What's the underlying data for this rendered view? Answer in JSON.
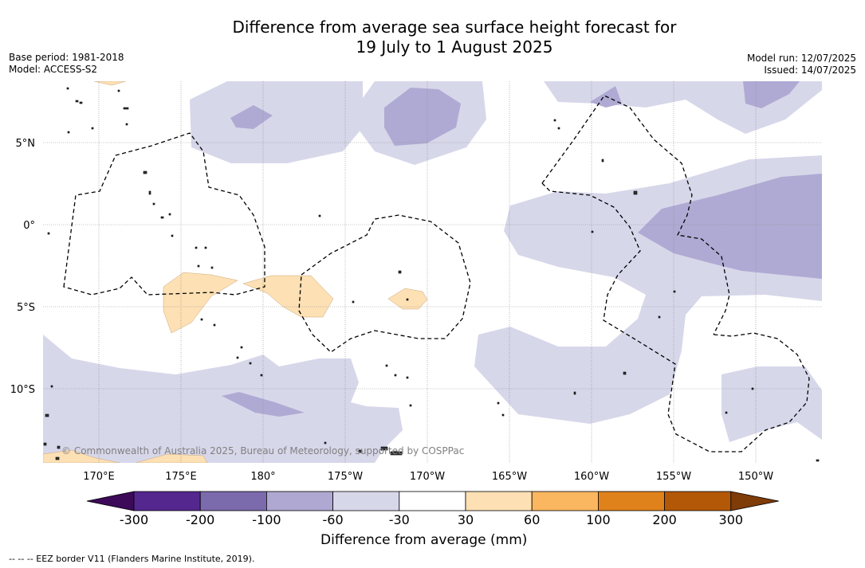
{
  "title_line1": "Difference from average sea surface height forecast for",
  "title_line2": "19 July to 1 August 2025",
  "base_period": "Base period: 1981-2018",
  "model": "Model: ACCESS-S2",
  "model_run": "Model run: 12/07/2025",
  "issued": "Issued: 14/07/2025",
  "attribution": "© Commonwealth of Australia 2025, Bureau of Meteorology, supported by COSPPac",
  "lon_labels": [
    "170°E",
    "175°E",
    "180°",
    "175°W",
    "170°W",
    "165°W",
    "160°W",
    "155°W",
    "150°W"
  ],
  "lat_labels": [
    "5°N",
    "0°",
    "5°S",
    "10°S"
  ],
  "colorbar": {
    "title": "Difference from average (mm)",
    "tick_labels": [
      "-300",
      "-200",
      "-100",
      "-60",
      "-30",
      "30",
      "60",
      "100",
      "200",
      "300"
    ],
    "colors": [
      "#3d0a5a",
      "#54278f",
      "#7b6aac",
      "#aea8d2",
      "#d7d7ea",
      "#ffffff",
      "#fde0b4",
      "#fbb660",
      "#e0821c",
      "#b35806",
      "#7f3b08"
    ]
  },
  "legend_note": "--  --  -- EEZ border V11 (Flanders Marine Institute, 2019)."
}
